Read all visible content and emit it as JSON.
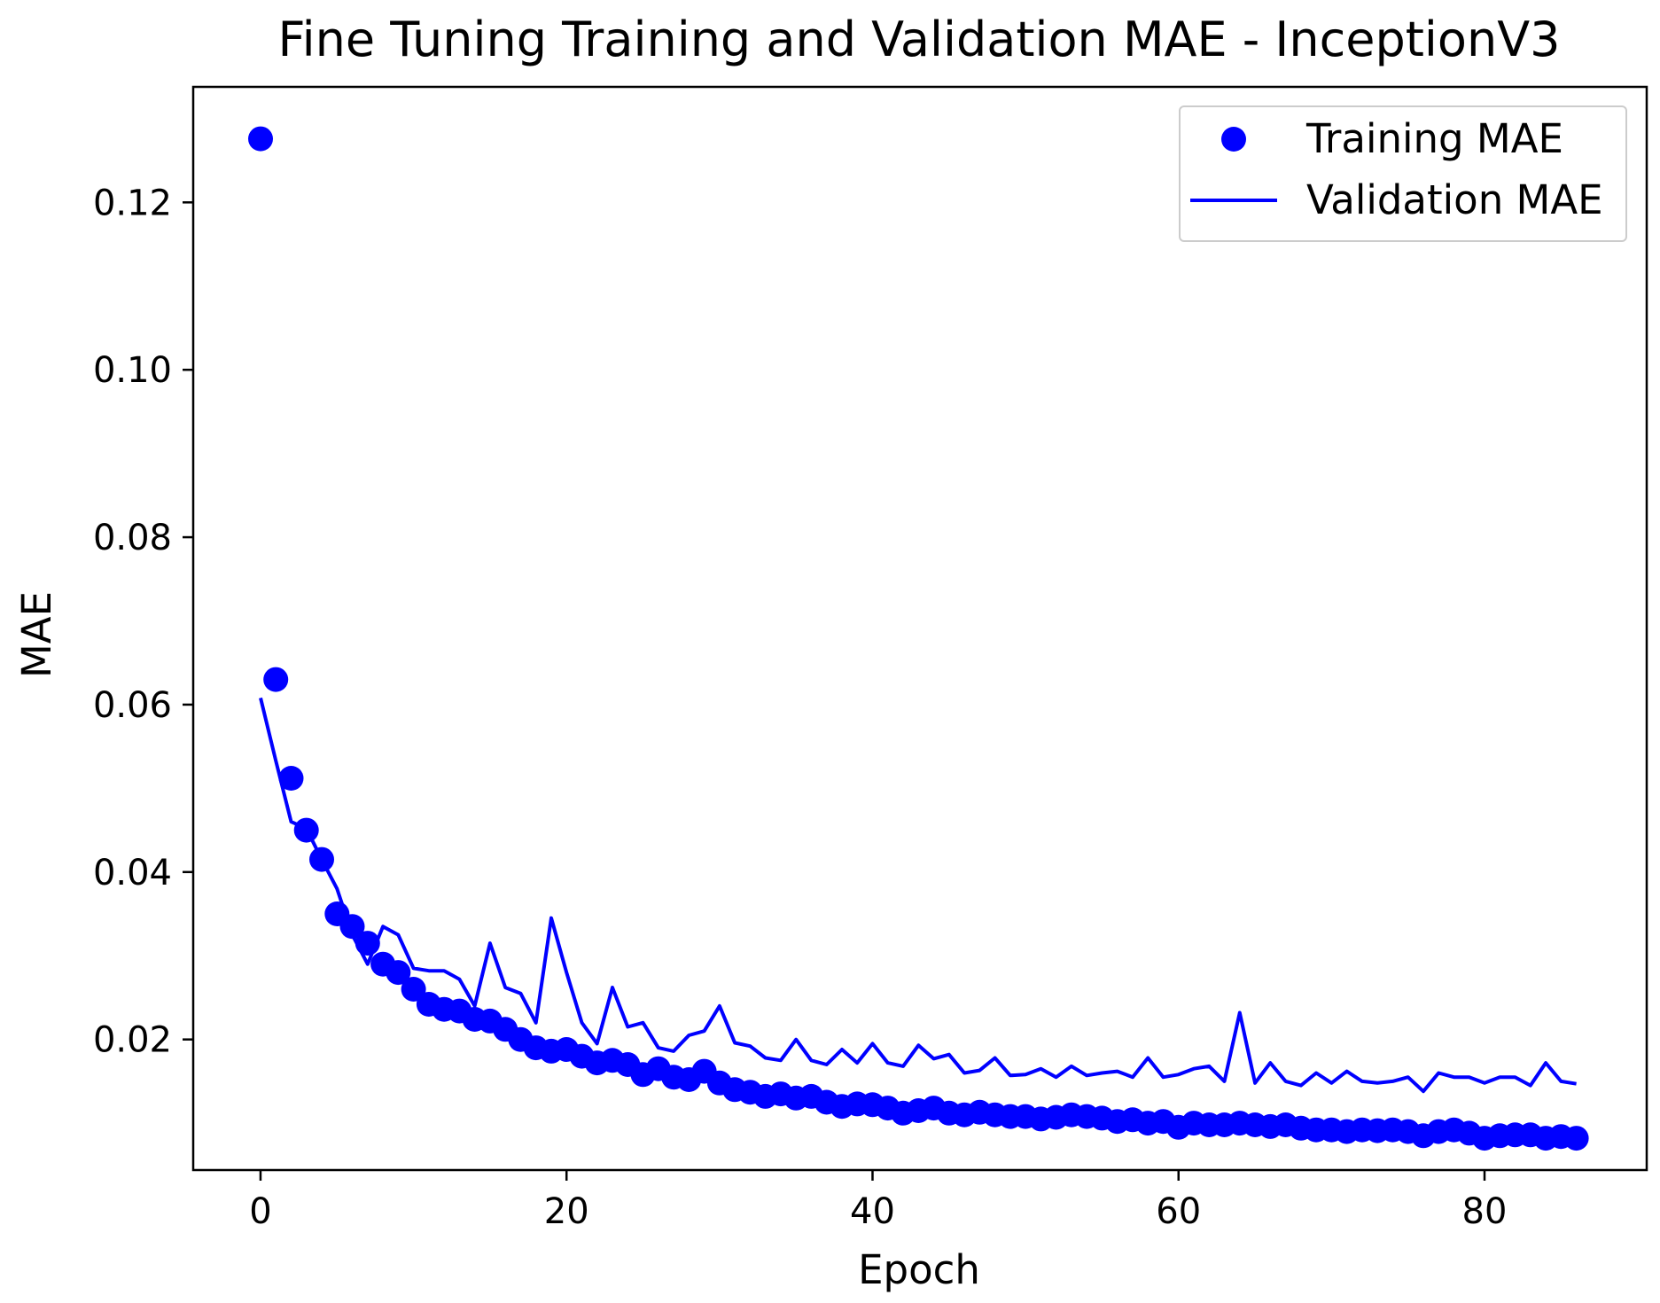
{
  "chart_data": {
    "type": "scatter",
    "title": "Fine Tuning Training and Validation MAE - InceptionV3",
    "xlabel": "Epoch",
    "ylabel": "MAE",
    "xlim": [
      -4.4,
      90.6
    ],
    "ylim": [
      0.0044,
      0.1338
    ],
    "xticks": [
      0,
      20,
      40,
      60,
      80
    ],
    "xtick_labels": [
      "0",
      "20",
      "40",
      "60",
      "80"
    ],
    "yticks": [
      0.02,
      0.04,
      0.06,
      0.08,
      0.1,
      0.12
    ],
    "ytick_labels": [
      "0.02",
      "0.04",
      "0.06",
      "0.08",
      "0.10",
      "0.12"
    ],
    "grid": false,
    "legend_position": "top-right",
    "color": "#0000ff",
    "x": [
      0,
      1,
      2,
      3,
      4,
      5,
      6,
      7,
      8,
      9,
      10,
      11,
      12,
      13,
      14,
      15,
      16,
      17,
      18,
      19,
      20,
      21,
      22,
      23,
      24,
      25,
      26,
      27,
      28,
      29,
      30,
      31,
      32,
      33,
      34,
      35,
      36,
      37,
      38,
      39,
      40,
      41,
      42,
      43,
      44,
      45,
      46,
      47,
      48,
      49,
      50,
      51,
      52,
      53,
      54,
      55,
      56,
      57,
      58,
      59,
      60,
      61,
      62,
      63,
      64,
      65,
      66,
      67,
      68,
      69,
      70,
      71,
      72,
      73,
      74,
      75,
      76,
      77,
      78,
      79,
      80,
      81,
      82,
      83,
      84,
      85,
      86
    ],
    "series": [
      {
        "name": "Training MAE",
        "style": "markers",
        "values": [
          0.1276,
          0.063,
          0.0512,
          0.045,
          0.0415,
          0.035,
          0.0335,
          0.0315,
          0.029,
          0.028,
          0.026,
          0.0242,
          0.0236,
          0.0234,
          0.0224,
          0.0222,
          0.0212,
          0.02,
          0.019,
          0.0186,
          0.0188,
          0.018,
          0.0172,
          0.0175,
          0.017,
          0.0158,
          0.0165,
          0.0155,
          0.0152,
          0.0162,
          0.0148,
          0.014,
          0.0137,
          0.0132,
          0.0135,
          0.013,
          0.0132,
          0.0125,
          0.012,
          0.0123,
          0.0122,
          0.0118,
          0.0112,
          0.0115,
          0.0118,
          0.0112,
          0.011,
          0.0113,
          0.011,
          0.0108,
          0.0108,
          0.0105,
          0.0107,
          0.011,
          0.0108,
          0.0106,
          0.0102,
          0.0104,
          0.01,
          0.0102,
          0.0095,
          0.01,
          0.0098,
          0.0098,
          0.01,
          0.0098,
          0.0096,
          0.0098,
          0.0094,
          0.0092,
          0.0092,
          0.009,
          0.0092,
          0.0091,
          0.0092,
          0.009,
          0.0085,
          0.009,
          0.0092,
          0.0088,
          0.0082,
          0.0085,
          0.0086,
          0.0086,
          0.0082,
          0.0084,
          0.0082
        ]
      },
      {
        "name": "Validation MAE",
        "style": "line",
        "values": [
          0.0608,
          0.0533,
          0.046,
          0.0452,
          0.0415,
          0.038,
          0.0325,
          0.029,
          0.0335,
          0.0325,
          0.0285,
          0.0282,
          0.0282,
          0.0272,
          0.024,
          0.0315,
          0.0262,
          0.0255,
          0.022,
          0.0345,
          0.028,
          0.022,
          0.0195,
          0.0262,
          0.0215,
          0.022,
          0.019,
          0.0186,
          0.0205,
          0.021,
          0.024,
          0.0196,
          0.0192,
          0.0178,
          0.0175,
          0.02,
          0.0175,
          0.017,
          0.0188,
          0.0172,
          0.0195,
          0.0172,
          0.0168,
          0.0193,
          0.0177,
          0.0182,
          0.016,
          0.0163,
          0.0178,
          0.0157,
          0.0158,
          0.0165,
          0.0155,
          0.0168,
          0.0157,
          0.016,
          0.0162,
          0.0155,
          0.0178,
          0.0155,
          0.0158,
          0.0165,
          0.0168,
          0.015,
          0.0232,
          0.0148,
          0.0172,
          0.015,
          0.0145,
          0.016,
          0.0148,
          0.0162,
          0.015,
          0.0148,
          0.015,
          0.0155,
          0.0138,
          0.016,
          0.0155,
          0.0155,
          0.0148,
          0.0155,
          0.0155,
          0.0145,
          0.0172,
          0.015,
          0.0147
        ]
      }
    ]
  }
}
